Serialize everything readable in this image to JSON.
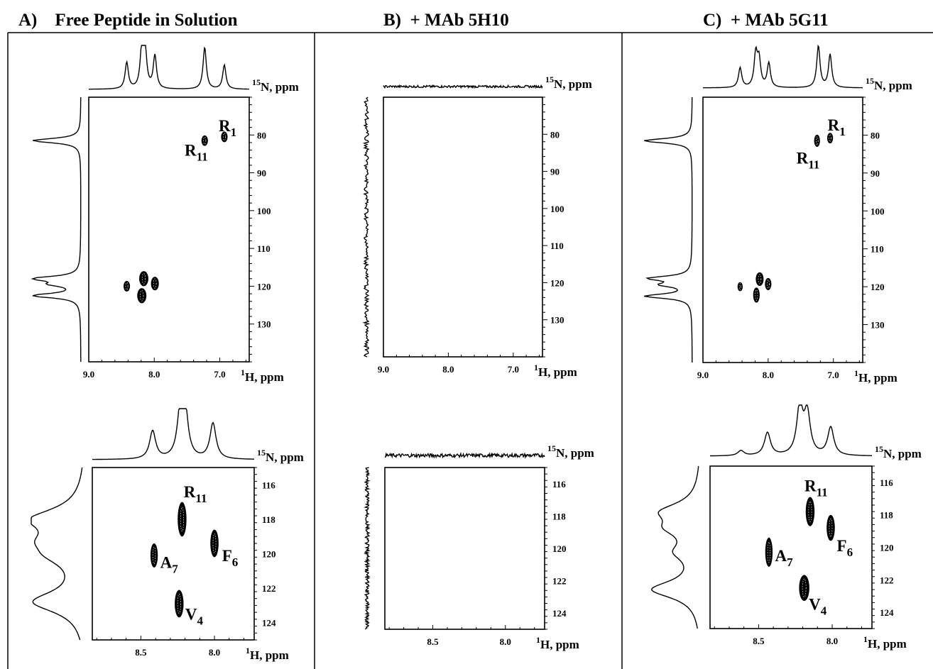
{
  "panels": [
    {
      "id": "A",
      "title": "A)    Free Peptide in Solution",
      "sections": [
        {
          "type": "contour",
          "xlim": [
            9.0,
            6.55
          ],
          "ylim": [
            70,
            140
          ],
          "xticks": [
            9.0,
            8.0,
            7.0
          ],
          "xtick_labels": [
            "9.0",
            "8.0",
            "7.0"
          ],
          "yticks": [
            80,
            90,
            100,
            110,
            120,
            130
          ],
          "ytick_labels": [
            "80",
            "90",
            "100",
            "110",
            "120",
            "130"
          ],
          "xlabel": "H, ppm",
          "xlabel_sup": "1",
          "ylabel": "N, ppm",
          "ylabel_sup": "15",
          "peaks": [
            {
              "x": 7.23,
              "y": 81.5,
              "w": 0.05,
              "h": 1.4
            },
            {
              "x": 6.93,
              "y": 80.5,
              "w": 0.05,
              "h": 1.4
            },
            {
              "x": 8.42,
              "y": 120.0,
              "w": 0.05,
              "h": 1.4
            },
            {
              "x": 8.16,
              "y": 118.0,
              "w": 0.07,
              "h": 2.0
            },
            {
              "x": 8.19,
              "y": 122.5,
              "w": 0.07,
              "h": 2.0
            },
            {
              "x": 7.99,
              "y": 119.3,
              "w": 0.06,
              "h": 1.8
            }
          ],
          "labels": [
            {
              "text": "R",
              "sub": "1",
              "x": 6.93,
              "y": 77.5
            },
            {
              "text": "R",
              "sub": "11",
              "x": 7.45,
              "y": 84.0
            }
          ],
          "proj_top": {
            "centers": [
              8.42,
              8.19,
              8.14,
              7.99,
              7.23,
              6.93
            ],
            "heights": [
              0.6,
              0.9,
              0.85,
              0.75,
              0.95,
              0.55
            ],
            "width": 0.03,
            "noise": 0.0
          },
          "proj_left": {
            "centers": [
              81.5,
              118.0,
              119.5,
              122.5
            ],
            "heights": [
              1.0,
              0.95,
              0.5,
              1.0
            ],
            "width": 0.7,
            "noise": 0.0
          }
        },
        {
          "type": "contour",
          "xlim": [
            8.83,
            7.73
          ],
          "ylim": [
            115,
            125
          ],
          "xticks": [
            8.5,
            8.0
          ],
          "xtick_labels": [
            "8.5",
            "8.0"
          ],
          "yticks": [
            116,
            118,
            120,
            122,
            124
          ],
          "ytick_labels": [
            "116",
            "118",
            "120",
            "122",
            "124"
          ],
          "xlabel": "H, ppm",
          "xlabel_sup": "1",
          "ylabel": "N, ppm",
          "ylabel_sup": "15",
          "peaks": [
            {
              "x": 8.22,
              "y": 118.0,
              "w": 0.03,
              "h": 1.0
            },
            {
              "x": 8.41,
              "y": 120.1,
              "w": 0.025,
              "h": 0.7
            },
            {
              "x": 8.24,
              "y": 122.9,
              "w": 0.03,
              "h": 0.8
            },
            {
              "x": 8.0,
              "y": 119.4,
              "w": 0.028,
              "h": 0.8
            }
          ],
          "labels": [
            {
              "text": "R",
              "sub": "11",
              "x": 8.17,
              "y": 116.4
            },
            {
              "text": "A",
              "sub": "7",
              "x": 8.33,
              "y": 120.5
            },
            {
              "text": "F",
              "sub": "6",
              "x": 7.91,
              "y": 120.1
            },
            {
              "text": "V",
              "sub": "4",
              "x": 8.16,
              "y": 123.5
            }
          ],
          "proj_top": {
            "centers": [
              8.42,
              8.23,
              8.2,
              8.01
            ],
            "heights": [
              0.55,
              0.95,
              0.85,
              0.7
            ],
            "width": 0.025,
            "noise": 0.0
          },
          "proj_left": {
            "centers": [
              118.0,
              119.3,
              120.1,
              122.8
            ],
            "heights": [
              0.85,
              0.5,
              0.4,
              0.9
            ],
            "width": 0.75,
            "noise": 0.0
          }
        }
      ]
    },
    {
      "id": "B",
      "title": "B)  + MAb 5H10",
      "sections": [
        {
          "type": "contour",
          "xlim": [
            9.0,
            6.55
          ],
          "ylim": [
            70,
            140
          ],
          "xticks": [
            9.0,
            8.0,
            7.0
          ],
          "xtick_labels": [
            "9.0",
            "8.0",
            "7.0"
          ],
          "yticks": [
            80,
            90,
            100,
            110,
            120,
            130
          ],
          "ytick_labels": [
            "80",
            "90",
            "100",
            "110",
            "120",
            "130"
          ],
          "xlabel": "H, ppm",
          "xlabel_sup": "1",
          "ylabel": "N, ppm",
          "ylabel_sup": "15",
          "peaks": [],
          "labels": [],
          "proj_top": {
            "centers": [],
            "heights": [],
            "width": 0.03,
            "noise": 0.05
          },
          "proj_left": {
            "centers": [],
            "heights": [],
            "width": 1.0,
            "noise": 0.09
          }
        },
        {
          "type": "contour",
          "xlim": [
            8.83,
            7.73
          ],
          "ylim": [
            115,
            125
          ],
          "xticks": [
            8.5,
            8.0
          ],
          "xtick_labels": [
            "8.5",
            "8.0"
          ],
          "yticks": [
            116,
            118,
            120,
            122,
            124
          ],
          "ytick_labels": [
            "116",
            "118",
            "120",
            "122",
            "124"
          ],
          "xlabel": "H, ppm",
          "xlabel_sup": "1",
          "ylabel": "N, ppm",
          "ylabel_sup": "15",
          "peaks": [],
          "labels": [],
          "proj_top": {
            "centers": [],
            "heights": [],
            "width": 0.03,
            "noise": 0.07
          },
          "proj_left": {
            "centers": [],
            "heights": [],
            "width": 1.0,
            "noise": 0.07
          }
        }
      ]
    },
    {
      "id": "C",
      "title": "C)  + MAb 5G11",
      "sections": [
        {
          "type": "contour",
          "xlim": [
            9.0,
            6.55
          ],
          "ylim": [
            70,
            140
          ],
          "xticks": [
            9.0,
            8.0,
            7.0
          ],
          "xtick_labels": [
            "9.0",
            "8.0",
            "7.0"
          ],
          "yticks": [
            80,
            90,
            100,
            110,
            120,
            130
          ],
          "ytick_labels": [
            "80",
            "90",
            "100",
            "110",
            "120",
            "130"
          ],
          "xlabel": "H, ppm",
          "xlabel_sup": "1",
          "ylabel": "N, ppm",
          "ylabel_sup": "15",
          "peaks": [
            {
              "x": 7.25,
              "y": 81.5,
              "w": 0.045,
              "h": 1.6
            },
            {
              "x": 7.05,
              "y": 80.8,
              "w": 0.045,
              "h": 1.4
            },
            {
              "x": 8.43,
              "y": 120.0,
              "w": 0.04,
              "h": 1.2
            },
            {
              "x": 8.13,
              "y": 118.0,
              "w": 0.06,
              "h": 1.8
            },
            {
              "x": 8.18,
              "y": 122.2,
              "w": 0.05,
              "h": 2.0
            },
            {
              "x": 8.0,
              "y": 119.3,
              "w": 0.05,
              "h": 1.6
            }
          ],
          "labels": [
            {
              "text": "R",
              "sub": "1",
              "x": 7.0,
              "y": 77.3
            },
            {
              "text": "R",
              "sub": "11",
              "x": 7.48,
              "y": 86.0
            }
          ],
          "proj_top": {
            "centers": [
              8.43,
              8.19,
              8.14,
              7.99,
              7.23,
              7.05
            ],
            "heights": [
              0.45,
              0.75,
              0.6,
              0.55,
              0.95,
              0.75
            ],
            "width": 0.03,
            "noise": 0.0
          },
          "proj_left": {
            "centers": [
              81.5,
              117.8,
              119.5,
              122.5
            ],
            "heights": [
              1.0,
              0.85,
              0.55,
              0.95
            ],
            "width": 0.7,
            "noise": 0.0
          }
        },
        {
          "type": "contour",
          "xlim": [
            8.83,
            7.73
          ],
          "ylim": [
            115,
            125
          ],
          "xticks": [
            8.5,
            8.0
          ],
          "xtick_labels": [
            "8.5",
            "8.0"
          ],
          "yticks": [
            116,
            118,
            120,
            122,
            124
          ],
          "ytick_labels": [
            "116",
            "118",
            "120",
            "122",
            "124"
          ],
          "xlabel": "H, ppm",
          "xlabel_sup": "1",
          "ylabel": "N, ppm",
          "ylabel_sup": "15",
          "peaks": [
            {
              "x": 8.15,
              "y": 117.8,
              "w": 0.03,
              "h": 0.9
            },
            {
              "x": 8.43,
              "y": 120.3,
              "w": 0.025,
              "h": 0.9
            },
            {
              "x": 8.01,
              "y": 118.8,
              "w": 0.028,
              "h": 0.8
            },
            {
              "x": 8.19,
              "y": 122.5,
              "w": 0.035,
              "h": 0.8
            }
          ],
          "labels": [
            {
              "text": "R",
              "sub": "11",
              "x": 8.15,
              "y": 116.2
            },
            {
              "text": "A",
              "sub": "7",
              "x": 8.35,
              "y": 120.5
            },
            {
              "text": "F",
              "sub": "6",
              "x": 7.93,
              "y": 119.9
            },
            {
              "text": "V",
              "sub": "4",
              "x": 8.12,
              "y": 123.5
            }
          ],
          "proj_top": {
            "centers": [
              8.62,
              8.44,
              8.22,
              8.17,
              8.01
            ],
            "heights": [
              0.1,
              0.45,
              0.95,
              0.8,
              0.55
            ],
            "width": 0.025,
            "noise": 0.0
          },
          "proj_left": {
            "centers": [
              117.8,
              118.8,
              120.3,
              122.6
            ],
            "heights": [
              0.6,
              0.45,
              0.35,
              0.85
            ],
            "width": 0.65,
            "noise": 0.0
          }
        }
      ]
    }
  ]
}
